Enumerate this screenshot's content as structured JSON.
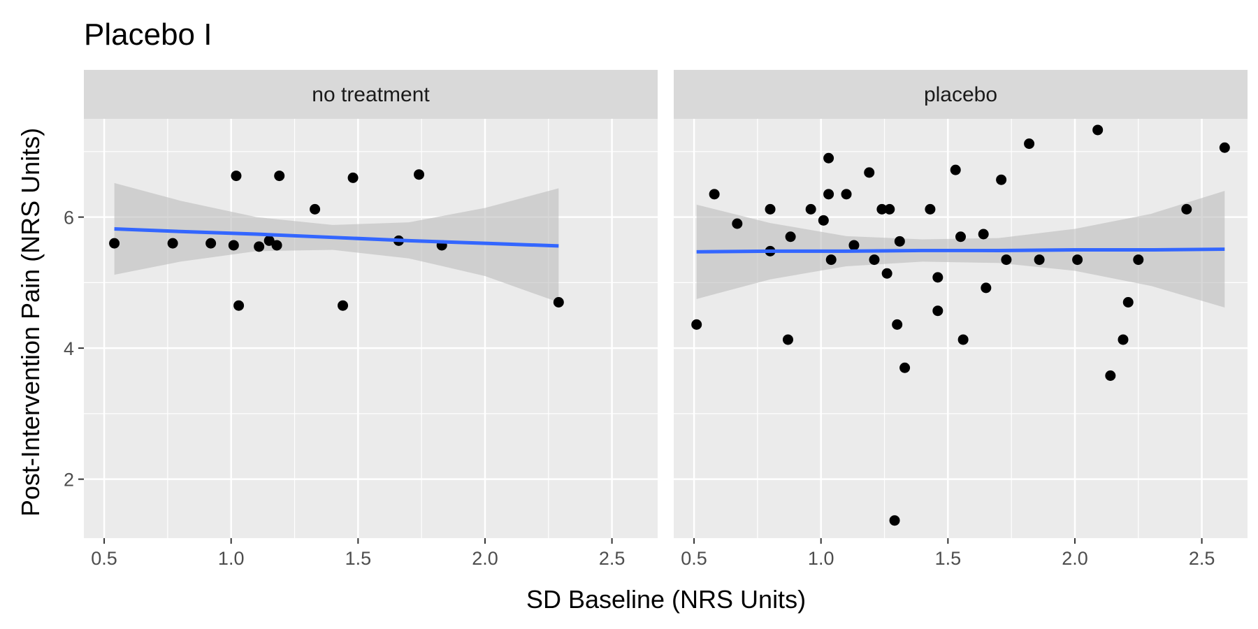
{
  "chart_data": {
    "type": "scatter",
    "title": "Placebo I",
    "xlabel": "SD Baseline (NRS Units)",
    "ylabel": "Post-Intervention Pain (NRS Units)",
    "xlim": [
      0.42,
      2.68
    ],
    "ylim": [
      1.1,
      7.5
    ],
    "x_ticks": [
      0.5,
      1.0,
      1.5,
      2.0,
      2.5
    ],
    "x_tick_labels": [
      "0.5",
      "1.0",
      "1.5",
      "2.0",
      "2.5"
    ],
    "y_ticks": [
      2,
      4,
      6
    ],
    "y_tick_labels": [
      "2",
      "4",
      "6"
    ],
    "grid": true,
    "colors": {
      "panel_bg": "#ebebeb",
      "strip_bg": "#d9d9d9",
      "grid": "#ffffff",
      "point": "#000000",
      "fit_line": "#3366ff",
      "ribbon": "#bdbdbd"
    },
    "panels": [
      {
        "strip_label": "no treatment",
        "points": [
          {
            "x": 0.54,
            "y": 5.6
          },
          {
            "x": 0.77,
            "y": 5.6
          },
          {
            "x": 0.92,
            "y": 5.6
          },
          {
            "x": 1.01,
            "y": 5.57
          },
          {
            "x": 1.02,
            "y": 6.63
          },
          {
            "x": 1.03,
            "y": 4.65
          },
          {
            "x": 1.11,
            "y": 5.55
          },
          {
            "x": 1.15,
            "y": 5.64
          },
          {
            "x": 1.18,
            "y": 5.57
          },
          {
            "x": 1.19,
            "y": 6.63
          },
          {
            "x": 1.33,
            "y": 6.12
          },
          {
            "x": 1.44,
            "y": 4.65
          },
          {
            "x": 1.48,
            "y": 6.6
          },
          {
            "x": 1.66,
            "y": 5.64
          },
          {
            "x": 1.74,
            "y": 6.65
          },
          {
            "x": 1.83,
            "y": 5.57
          },
          {
            "x": 2.29,
            "y": 4.7
          }
        ],
        "fit": {
          "x": [
            0.54,
            0.8,
            1.1,
            1.4,
            1.7,
            2.0,
            2.29
          ],
          "y": [
            5.82,
            5.78,
            5.74,
            5.69,
            5.64,
            5.6,
            5.56
          ],
          "lower": [
            5.12,
            5.32,
            5.48,
            5.5,
            5.37,
            5.1,
            4.7
          ],
          "upper": [
            6.52,
            6.25,
            6.0,
            5.88,
            5.92,
            6.14,
            6.44
          ]
        }
      },
      {
        "strip_label": "placebo",
        "points": [
          {
            "x": 0.51,
            "y": 4.36
          },
          {
            "x": 0.58,
            "y": 6.35
          },
          {
            "x": 0.67,
            "y": 5.9
          },
          {
            "x": 0.8,
            "y": 6.12
          },
          {
            "x": 0.8,
            "y": 5.48
          },
          {
            "x": 0.87,
            "y": 4.13
          },
          {
            "x": 0.88,
            "y": 5.7
          },
          {
            "x": 0.96,
            "y": 6.12
          },
          {
            "x": 1.01,
            "y": 5.95
          },
          {
            "x": 1.03,
            "y": 6.9
          },
          {
            "x": 1.03,
            "y": 6.35
          },
          {
            "x": 1.04,
            "y": 5.35
          },
          {
            "x": 1.1,
            "y": 6.35
          },
          {
            "x": 1.13,
            "y": 5.57
          },
          {
            "x": 1.19,
            "y": 6.68
          },
          {
            "x": 1.21,
            "y": 5.35
          },
          {
            "x": 1.24,
            "y": 6.12
          },
          {
            "x": 1.26,
            "y": 5.14
          },
          {
            "x": 1.27,
            "y": 6.12
          },
          {
            "x": 1.29,
            "y": 1.37
          },
          {
            "x": 1.3,
            "y": 4.36
          },
          {
            "x": 1.31,
            "y": 5.63
          },
          {
            "x": 1.33,
            "y": 3.7
          },
          {
            "x": 1.43,
            "y": 6.12
          },
          {
            "x": 1.46,
            "y": 5.08
          },
          {
            "x": 1.46,
            "y": 4.57
          },
          {
            "x": 1.53,
            "y": 6.72
          },
          {
            "x": 1.55,
            "y": 5.7
          },
          {
            "x": 1.56,
            "y": 4.13
          },
          {
            "x": 1.64,
            "y": 5.74
          },
          {
            "x": 1.65,
            "y": 4.92
          },
          {
            "x": 1.71,
            "y": 6.57
          },
          {
            "x": 1.73,
            "y": 5.35
          },
          {
            "x": 1.82,
            "y": 7.12
          },
          {
            "x": 1.86,
            "y": 5.35
          },
          {
            "x": 2.01,
            "y": 5.35
          },
          {
            "x": 2.09,
            "y": 7.33
          },
          {
            "x": 2.14,
            "y": 3.58
          },
          {
            "x": 2.19,
            "y": 4.13
          },
          {
            "x": 2.21,
            "y": 4.7
          },
          {
            "x": 2.25,
            "y": 5.35
          },
          {
            "x": 2.44,
            "y": 6.12
          },
          {
            "x": 2.59,
            "y": 7.06
          }
        ],
        "fit": {
          "x": [
            0.51,
            0.8,
            1.1,
            1.4,
            1.7,
            2.0,
            2.3,
            2.59
          ],
          "y": [
            5.47,
            5.48,
            5.48,
            5.49,
            5.49,
            5.5,
            5.5,
            5.51
          ],
          "lower": [
            4.75,
            5.05,
            5.25,
            5.32,
            5.3,
            5.18,
            4.95,
            4.62
          ],
          "upper": [
            6.19,
            5.91,
            5.71,
            5.66,
            5.68,
            5.82,
            6.05,
            6.4
          ]
        }
      }
    ]
  }
}
